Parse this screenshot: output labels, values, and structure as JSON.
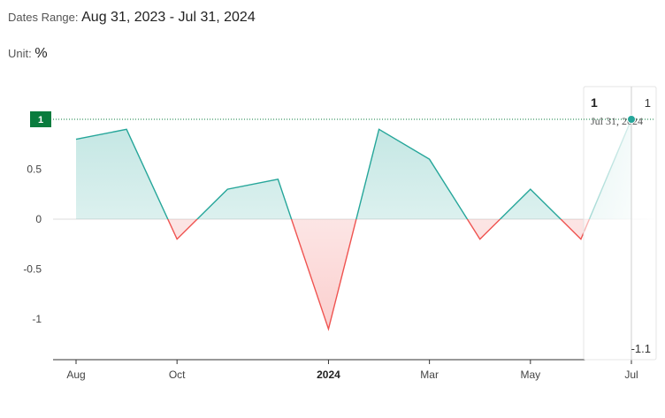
{
  "header": {
    "dates_label": "Dates Range:",
    "dates_value": "Aug 31, 2023 - Jul 31, 2024",
    "unit_label": "Unit:",
    "unit_value": "%"
  },
  "chart_data": {
    "type": "area",
    "title": "",
    "xlabel": "",
    "ylabel": "",
    "x": [
      "Aug 31, 2023",
      "Sep 30, 2023",
      "Oct 31, 2023",
      "Nov 30, 2023",
      "Dec 31, 2023",
      "Jan 31, 2024",
      "Feb 29, 2024",
      "Mar 31, 2024",
      "Apr 30, 2024",
      "May 31, 2024",
      "Jun 30, 2024",
      "Jul 31, 2024"
    ],
    "values": [
      0.8,
      0.9,
      -0.2,
      0.3,
      0.4,
      -1.1,
      0.9,
      0.6,
      -0.2,
      0.3,
      -0.2,
      1
    ],
    "ylim": [
      -1.4,
      1.2
    ],
    "y_ticks": [
      {
        "value": 1,
        "label": "1"
      },
      {
        "value": 0.5,
        "label": "0.5"
      },
      {
        "value": 0,
        "label": "0"
      },
      {
        "value": -0.5,
        "label": "-0.5"
      },
      {
        "value": -1,
        "label": "-1"
      }
    ],
    "x_ticks": [
      {
        "index": 0,
        "label": "Aug",
        "bold": false
      },
      {
        "index": 2,
        "label": "Oct",
        "bold": false
      },
      {
        "index": 5,
        "label": "2024",
        "bold": true
      },
      {
        "index": 7,
        "label": "Mar",
        "bold": false
      },
      {
        "index": 9,
        "label": "May",
        "bold": false
      },
      {
        "index": 11,
        "label": "Jul",
        "bold": false
      }
    ],
    "positive_color": "#26a69a",
    "negative_color": "#ef5350",
    "crosshair": {
      "value_label": "1",
      "date_label": "Jul 31, 2024",
      "y_badge": "1",
      "max_label": "1",
      "min_label": "-1.1",
      "badge_color": "#0a7c3e"
    }
  }
}
